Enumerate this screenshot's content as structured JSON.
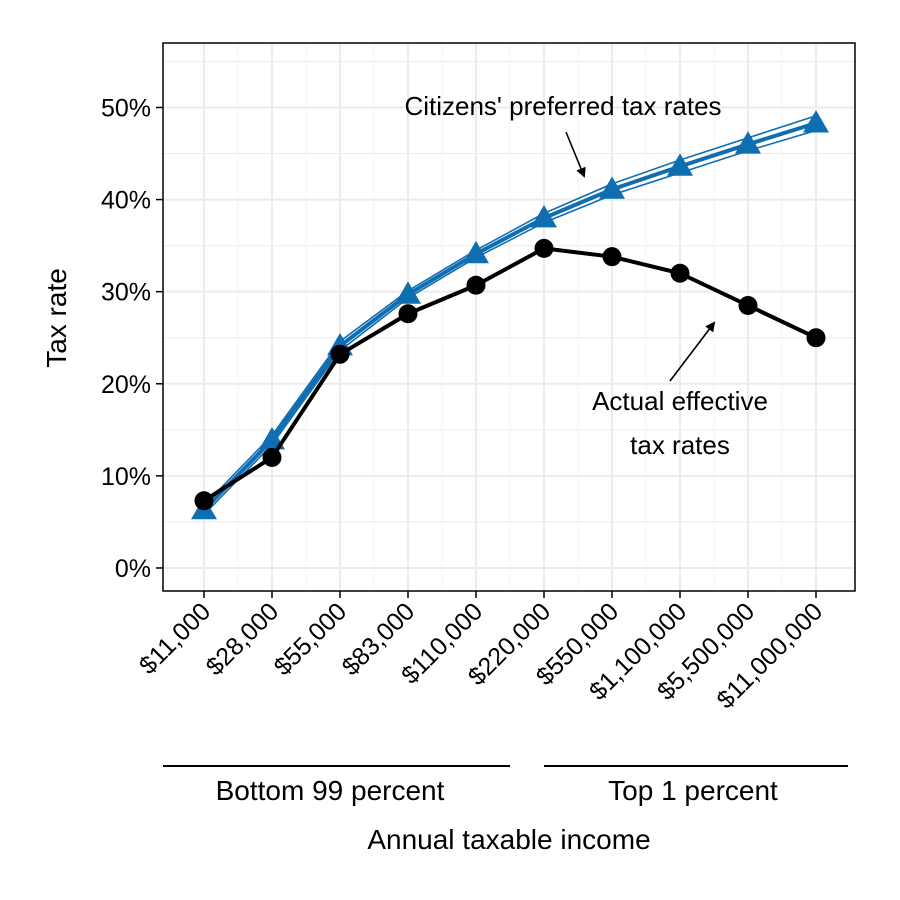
{
  "chart_data": {
    "type": "line",
    "title": "",
    "xlabel": "Annual taxable income",
    "ylabel": "Tax rate",
    "categories": [
      "$11,000",
      "$28,000",
      "$55,000",
      "$83,000",
      "$110,000",
      "$220,000",
      "$550,000",
      "$1,100,000",
      "$5,500,000",
      "$11,000,000"
    ],
    "y_ticks": [
      "0%",
      "10%",
      "20%",
      "30%",
      "40%",
      "50%"
    ],
    "ylim": [
      -2.5,
      57
    ],
    "grid": true,
    "series": [
      {
        "key": "preferred",
        "marker": "triangle",
        "color": "#0f6db1",
        "values": [
          6.3,
          13.9,
          24.1,
          29.7,
          34.1,
          38.0,
          41.1,
          43.6,
          46.0,
          48.3
        ],
        "band": [
          0.5,
          0.5,
          0.5,
          0.4,
          0.4,
          0.5,
          0.6,
          0.7,
          0.7,
          0.8
        ]
      },
      {
        "key": "actual",
        "marker": "circle",
        "color": "#000000",
        "values": [
          7.3,
          12.0,
          23.2,
          27.6,
          30.7,
          34.7,
          33.8,
          32.0,
          28.5,
          25.0
        ]
      }
    ],
    "annotations": {
      "preferred": "Citizens' preferred tax rates",
      "actual_line1": "Actual effective",
      "actual_line2": "tax rates"
    },
    "groups": {
      "bottom": "Bottom 99 percent",
      "top": "Top 1 percent"
    }
  }
}
